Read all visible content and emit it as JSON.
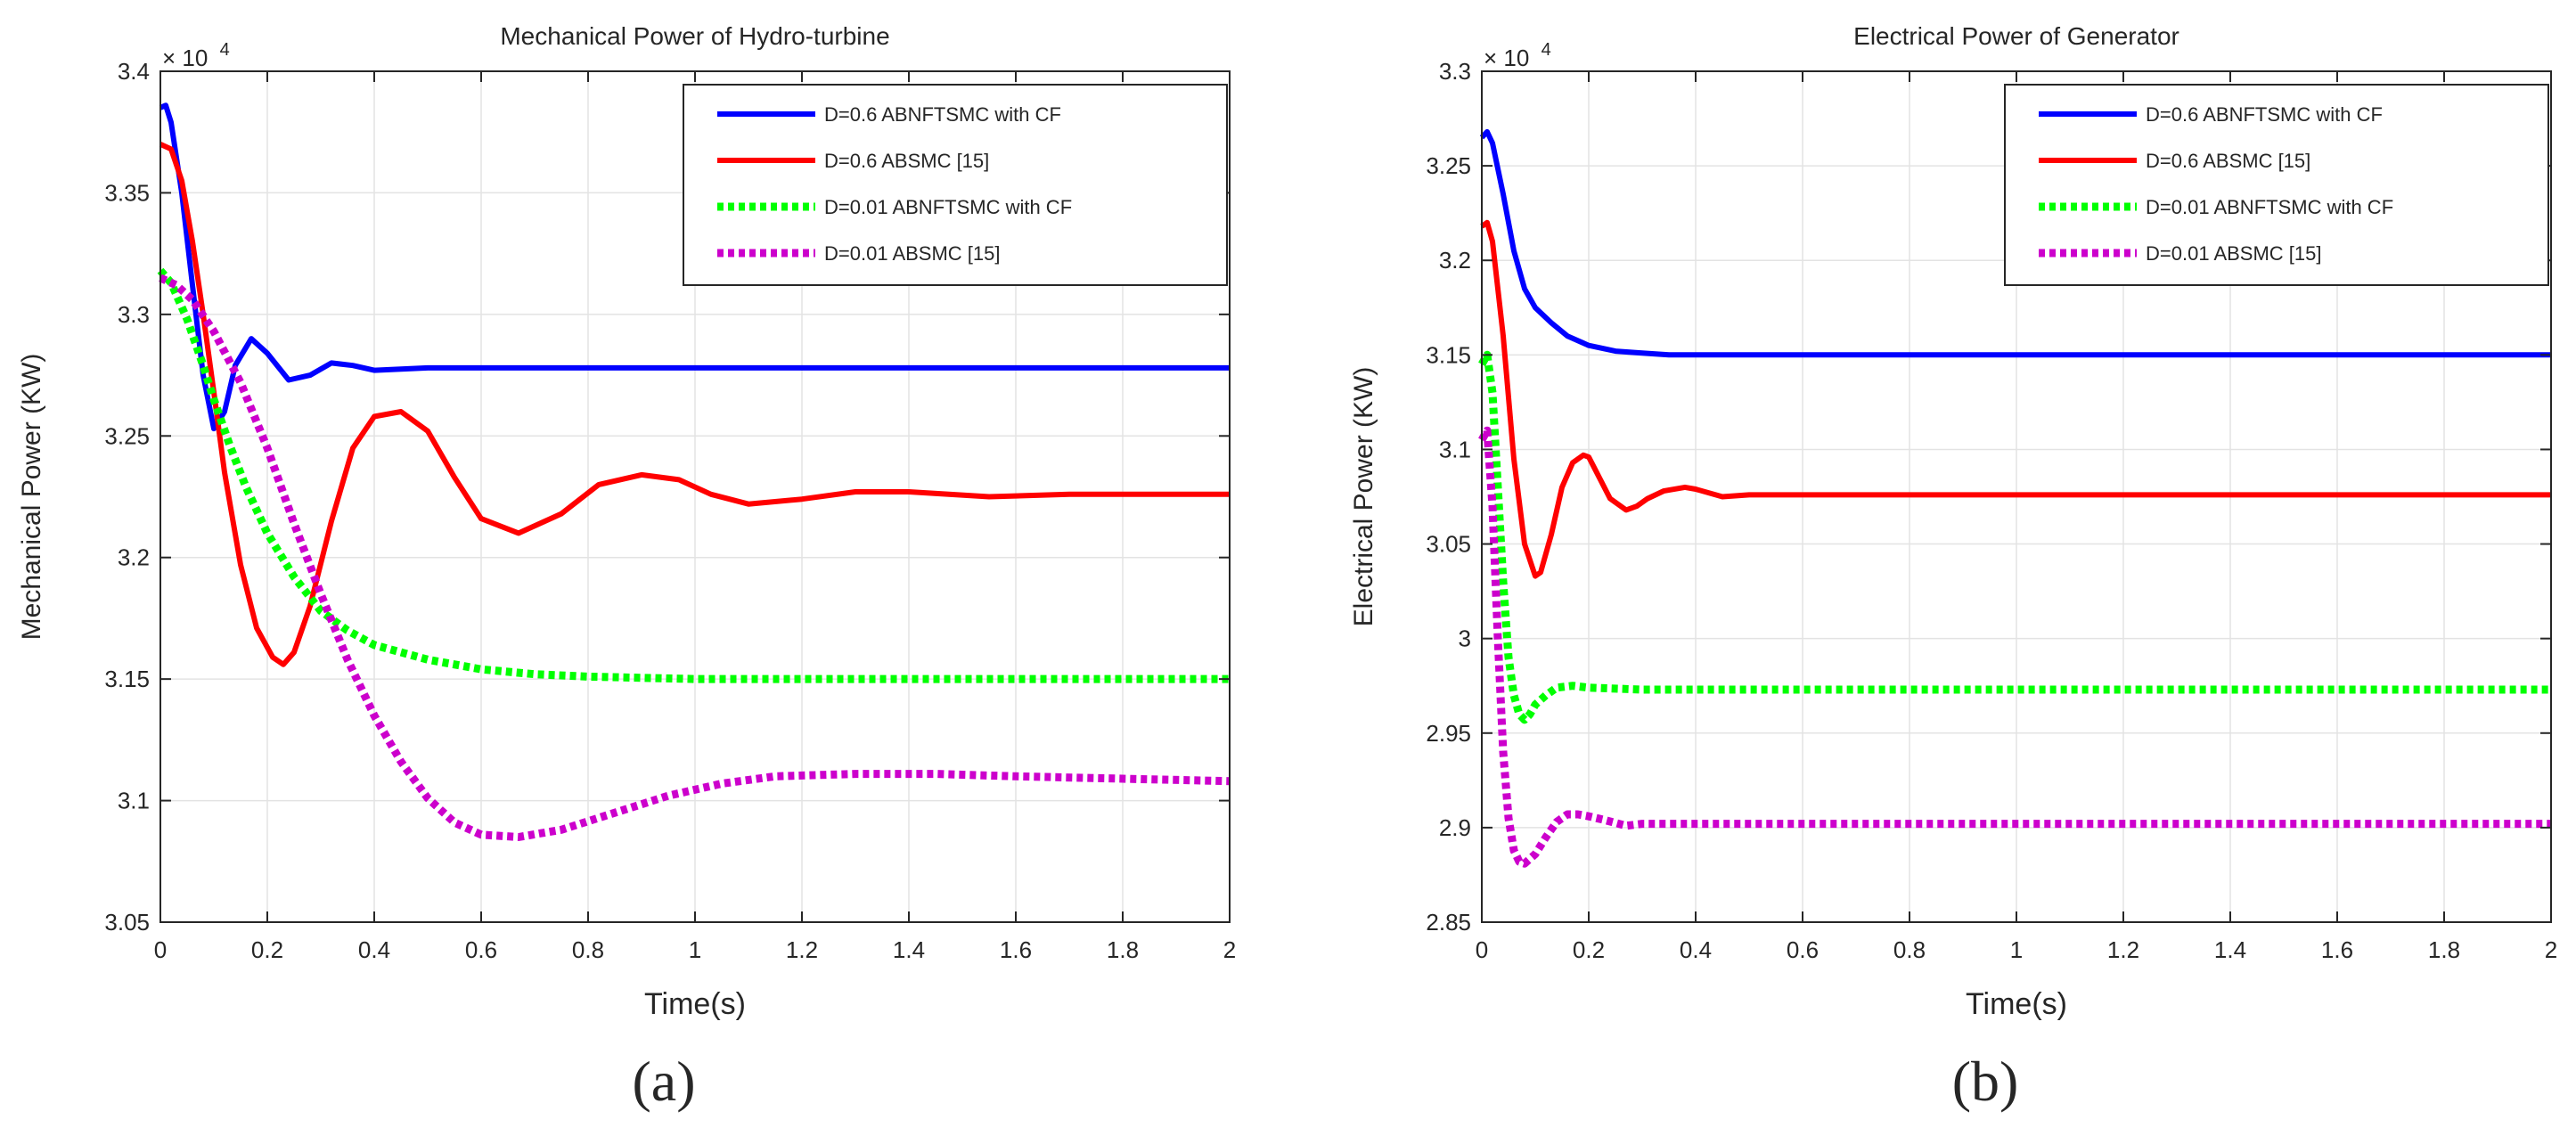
{
  "chart_data": [
    {
      "type": "line",
      "panel_label": "(a)",
      "title": "Mechanical Power of Hydro-turbine",
      "xlabel": "Time(s)",
      "ylabel": "Mechanical Power (KW)",
      "exponent_label": "× 10",
      "exponent_power": "4",
      "xlim": [
        0,
        2
      ],
      "ylim": [
        3.05,
        3.4
      ],
      "xticks": [
        0,
        0.2,
        0.4,
        0.6,
        0.8,
        1,
        1.2,
        1.4,
        1.6,
        1.8,
        2
      ],
      "xtick_labels": [
        "0",
        "0.2",
        "0.4",
        "0.6",
        "0.8",
        "1",
        "1.2",
        "1.4",
        "1.6",
        "1.8",
        "2"
      ],
      "yticks": [
        3.05,
        3.1,
        3.15,
        3.2,
        3.25,
        3.3,
        3.35,
        3.4
      ],
      "ytick_labels": [
        "3.05",
        "3.1",
        "3.15",
        "3.2",
        "3.25",
        "3.3",
        "3.35",
        "3.4"
      ],
      "grid": true,
      "legend_position": "top-right",
      "series": [
        {
          "name": "D=0.6 ABNFTSMC with CF",
          "color": "#0000ff",
          "dash": "solid",
          "x": [
            0,
            0.01,
            0.02,
            0.04,
            0.06,
            0.08,
            0.1,
            0.12,
            0.14,
            0.17,
            0.2,
            0.24,
            0.28,
            0.32,
            0.36,
            0.4,
            0.5,
            0.6,
            0.8,
            1,
            1.5,
            2
          ],
          "y": [
            3.385,
            3.386,
            3.379,
            3.35,
            3.312,
            3.275,
            3.253,
            3.26,
            3.279,
            3.29,
            3.284,
            3.273,
            3.275,
            3.28,
            3.279,
            3.277,
            3.278,
            3.278,
            3.278,
            3.278,
            3.278,
            3.278
          ]
        },
        {
          "name": "D=0.6 ABSMC [15]",
          "color": "#ff0000",
          "dash": "solid",
          "x": [
            0,
            0.02,
            0.04,
            0.06,
            0.08,
            0.1,
            0.12,
            0.15,
            0.18,
            0.21,
            0.23,
            0.25,
            0.28,
            0.32,
            0.36,
            0.4,
            0.45,
            0.5,
            0.55,
            0.6,
            0.67,
            0.75,
            0.82,
            0.9,
            0.97,
            1.03,
            1.1,
            1.2,
            1.3,
            1.4,
            1.55,
            1.7,
            2
          ],
          "y": [
            3.37,
            3.368,
            3.355,
            3.33,
            3.3,
            3.268,
            3.235,
            3.197,
            3.171,
            3.159,
            3.156,
            3.161,
            3.18,
            3.215,
            3.245,
            3.258,
            3.26,
            3.252,
            3.233,
            3.216,
            3.21,
            3.218,
            3.23,
            3.234,
            3.232,
            3.226,
            3.222,
            3.224,
            3.227,
            3.227,
            3.225,
            3.226,
            3.226
          ]
        },
        {
          "name": "D=0.01 ABNFTSMC with CF",
          "color": "#00ff00",
          "dash": "dotted",
          "x": [
            0,
            0.02,
            0.05,
            0.08,
            0.1,
            0.13,
            0.16,
            0.2,
            0.25,
            0.3,
            0.35,
            0.4,
            0.5,
            0.6,
            0.7,
            0.8,
            1,
            1.2,
            1.5,
            2
          ],
          "y": [
            3.318,
            3.313,
            3.298,
            3.279,
            3.265,
            3.246,
            3.229,
            3.21,
            3.192,
            3.178,
            3.17,
            3.164,
            3.158,
            3.154,
            3.152,
            3.151,
            3.15,
            3.15,
            3.15,
            3.15
          ]
        },
        {
          "name": "D=0.01 ABSMC [15]",
          "color": "#cc00cc",
          "dash": "dotted",
          "x": [
            0,
            0.03,
            0.06,
            0.1,
            0.15,
            0.2,
            0.25,
            0.3,
            0.35,
            0.4,
            0.45,
            0.5,
            0.55,
            0.6,
            0.67,
            0.75,
            0.85,
            0.95,
            1.05,
            1.15,
            1.3,
            1.45,
            1.6,
            1.8,
            2
          ],
          "y": [
            3.315,
            3.312,
            3.306,
            3.293,
            3.272,
            3.245,
            3.214,
            3.185,
            3.158,
            3.135,
            3.116,
            3.101,
            3.091,
            3.086,
            3.085,
            3.088,
            3.095,
            3.102,
            3.107,
            3.11,
            3.111,
            3.111,
            3.11,
            3.109,
            3.108
          ]
        }
      ]
    },
    {
      "type": "line",
      "panel_label": "(b)",
      "title": "Electrical Power of Generator",
      "xlabel": "Time(s)",
      "ylabel": "Electrical Power (KW)",
      "exponent_label": "× 10",
      "exponent_power": "4",
      "xlim": [
        0,
        2
      ],
      "ylim": [
        2.85,
        3.3
      ],
      "xticks": [
        0,
        0.2,
        0.4,
        0.6,
        0.8,
        1,
        1.2,
        1.4,
        1.6,
        1.8,
        2
      ],
      "xtick_labels": [
        "0",
        "0.2",
        "0.4",
        "0.6",
        "0.8",
        "1",
        "1.2",
        "1.4",
        "1.6",
        "1.8",
        "2"
      ],
      "yticks": [
        2.85,
        2.9,
        2.95,
        3.0,
        3.05,
        3.1,
        3.15,
        3.2,
        3.25,
        3.3
      ],
      "ytick_labels": [
        "2.85",
        "2.9",
        "2.95",
        "3",
        "3.05",
        "3.1",
        "3.15",
        "3.2",
        "3.25",
        "3.3"
      ],
      "grid": true,
      "legend_position": "top-right",
      "series": [
        {
          "name": "D=0.6 ABNFTSMC with CF",
          "color": "#0000ff",
          "dash": "solid",
          "x": [
            0,
            0.01,
            0.02,
            0.04,
            0.06,
            0.08,
            0.1,
            0.13,
            0.16,
            0.2,
            0.25,
            0.3,
            0.35,
            0.4,
            0.5,
            0.7,
            1,
            1.5,
            2
          ],
          "y": [
            3.265,
            3.268,
            3.262,
            3.235,
            3.205,
            3.185,
            3.175,
            3.167,
            3.16,
            3.155,
            3.152,
            3.151,
            3.15,
            3.15,
            3.15,
            3.15,
            3.15,
            3.15,
            3.15
          ]
        },
        {
          "name": "D=0.6 ABSMC [15]",
          "color": "#ff0000",
          "dash": "solid",
          "x": [
            0,
            0.01,
            0.02,
            0.04,
            0.06,
            0.08,
            0.1,
            0.11,
            0.13,
            0.15,
            0.17,
            0.19,
            0.2,
            0.22,
            0.24,
            0.27,
            0.29,
            0.31,
            0.34,
            0.38,
            0.4,
            0.45,
            0.5,
            0.6,
            0.8,
            1,
            1.5,
            2
          ],
          "y": [
            3.218,
            3.22,
            3.21,
            3.16,
            3.095,
            3.05,
            3.033,
            3.035,
            3.055,
            3.08,
            3.093,
            3.097,
            3.096,
            3.085,
            3.074,
            3.068,
            3.07,
            3.074,
            3.078,
            3.08,
            3.079,
            3.075,
            3.076,
            3.076,
            3.076,
            3.076,
            3.076,
            3.076
          ]
        },
        {
          "name": "D=0.01 ABNFTSMC with CF",
          "color": "#00ff00",
          "dash": "dotted",
          "x": [
            0,
            0.01,
            0.02,
            0.03,
            0.04,
            0.05,
            0.06,
            0.07,
            0.08,
            0.09,
            0.1,
            0.12,
            0.14,
            0.17,
            0.2,
            0.3,
            0.5,
            1,
            1.5,
            2
          ],
          "y": [
            3.145,
            3.15,
            3.13,
            3.08,
            3.03,
            2.99,
            2.97,
            2.96,
            2.957,
            2.96,
            2.965,
            2.97,
            2.974,
            2.975,
            2.974,
            2.973,
            2.973,
            2.973,
            2.973,
            2.973
          ]
        },
        {
          "name": "D=0.01 ABSMC [15]",
          "color": "#cc00cc",
          "dash": "dotted",
          "x": [
            0,
            0.01,
            0.02,
            0.03,
            0.04,
            0.05,
            0.06,
            0.07,
            0.08,
            0.1,
            0.12,
            0.14,
            0.16,
            0.18,
            0.2,
            0.23,
            0.27,
            0.3,
            0.4,
            0.6,
            1,
            1.5,
            2
          ],
          "y": [
            3.105,
            3.11,
            3.07,
            3.0,
            2.94,
            2.905,
            2.888,
            2.882,
            2.881,
            2.886,
            2.895,
            2.903,
            2.907,
            2.907,
            2.906,
            2.904,
            2.901,
            2.902,
            2.902,
            2.902,
            2.902,
            2.902,
            2.902
          ]
        }
      ]
    }
  ]
}
